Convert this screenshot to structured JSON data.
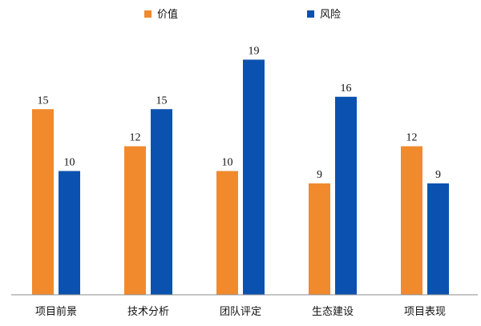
{
  "chart_data": {
    "type": "bar",
    "categories": [
      "项目前景",
      "技术分析",
      "团队评定",
      "生态建设",
      "项目表现"
    ],
    "series": [
      {
        "name": "价值",
        "values": [
          15,
          12,
          10,
          9,
          12
        ],
        "color": "#F08A2C"
      },
      {
        "name": "风险",
        "values": [
          10,
          15,
          19,
          16,
          9
        ],
        "color": "#0B52B0"
      }
    ],
    "title": "",
    "xlabel": "",
    "ylabel": "",
    "ylim": [
      0,
      19.5
    ],
    "grid": false,
    "legend_position": "top-center",
    "data_labels": true
  }
}
